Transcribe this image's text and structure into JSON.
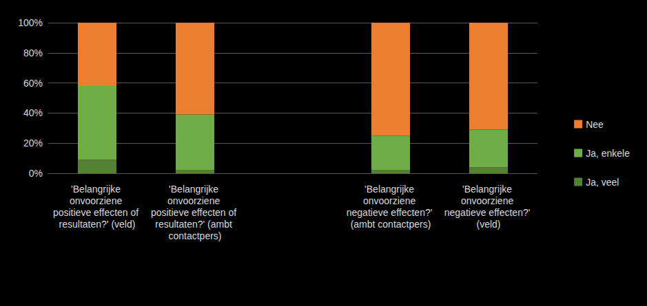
{
  "chart_data": {
    "type": "bar",
    "stacked": true,
    "categories": [
      "'Belangrijke onvoorziene positieve effecten of resultaten?' (veld)",
      "'Belangrijke onvoorziene positieve effecten of resultaten?' (ambt contactpers)",
      null,
      "'Belangrijke onvoorziene negatieve effecten?' (ambt contactpers)",
      "'Belangrijke onvoorziene negatieve effecten?' (veld)"
    ],
    "series": [
      {
        "name": "Ja, veel",
        "color": "#548235",
        "values": [
          9,
          2,
          null,
          2,
          4
        ]
      },
      {
        "name": "Ja, enkele",
        "color": "#70ad47",
        "values": [
          49,
          37,
          null,
          23,
          25
        ]
      },
      {
        "name": "Nee",
        "color": "#ed7d31",
        "values": [
          42,
          61,
          null,
          75,
          71
        ]
      }
    ],
    "ylim": [
      0,
      100
    ],
    "yticks": [
      {
        "value": 0,
        "label": "0%"
      },
      {
        "value": 20,
        "label": "20%"
      },
      {
        "value": 40,
        "label": "40%"
      },
      {
        "value": 60,
        "label": "60%"
      },
      {
        "value": 80,
        "label": "80%"
      },
      {
        "value": 100,
        "label": "100%"
      }
    ],
    "grid": true,
    "legend": "right"
  }
}
